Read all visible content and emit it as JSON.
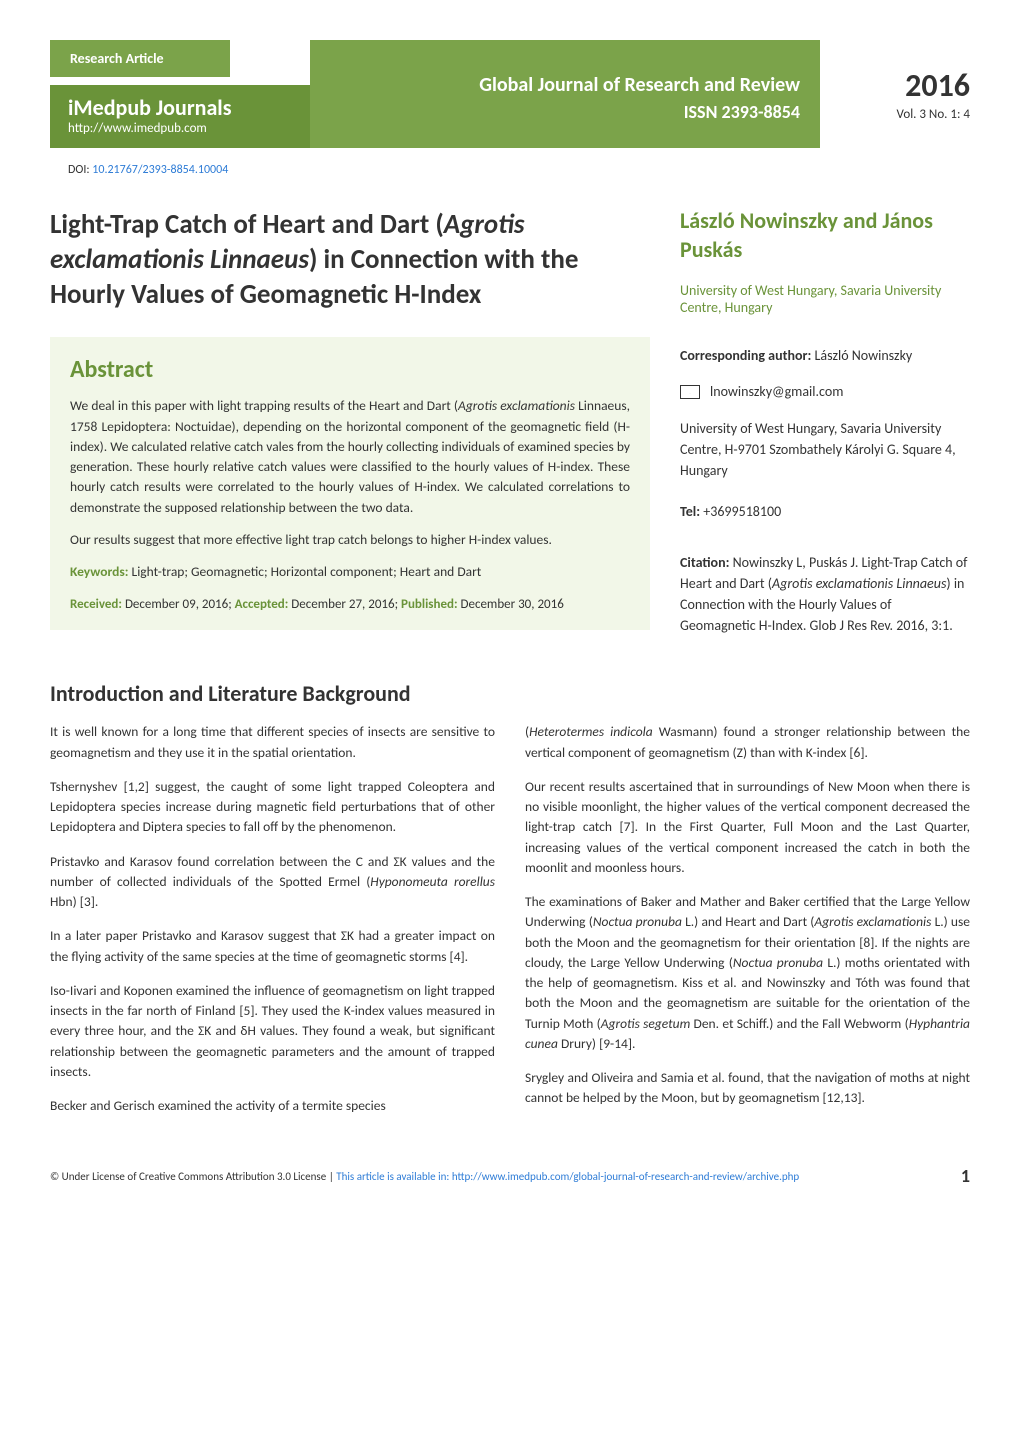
{
  "header": {
    "research_tag": "Research Article",
    "imedpub_title": "iMedpub Journals",
    "imedpub_url": "http://www.imedpub.com",
    "journal_name": "Global Journal of Research and Review",
    "issn": "ISSN 2393-8854",
    "year": "2016",
    "vol_issue": "Vol. 3 No. 1: 4",
    "doi": "DOI: 10.21767/2393-8854.10004"
  },
  "article": {
    "title_prefix": "Light-Trap Catch of Heart and Dart (",
    "title_italic1": "Agrotis exclamationis Linnaeus",
    "title_suffix": ") in Connection with the Hourly Values of Geomagnetic H-Index"
  },
  "authors": {
    "names": "László Nowinszky and János Puskás",
    "affiliation": "University of West Hungary, Savaria University Centre, Hungary"
  },
  "abstract": {
    "heading": "Abstract",
    "para1": "We deal in this paper with light trapping results of the Heart and Dart (Agrotis exclamationis Linnaeus, 1758 Lepidoptera: Noctuidae), depending on the horizontal component of the geomagnetic field (H-index). We calculated relative catch vales from the hourly collecting individuals of examined species by generation. These hourly relative catch values were classified to the hourly values of H-index. These hourly catch results were correlated to the hourly values of H-index. We calculated correlations to demonstrate the supposed relationship between the two data.",
    "para2": "Our results suggest that more effective light trap catch belongs to higher H-index values.",
    "keywords_label": "Keywords: ",
    "keywords": "Light-trap; Geomagnetic; Horizontal component; Heart and Dart",
    "received_label": "Received: ",
    "received": "December 09, 2016; ",
    "accepted_label": "Accepted: ",
    "accepted": "December 27, 2016; ",
    "published_label": "Published: ",
    "published": "December 30, 2016"
  },
  "corresponding": {
    "label": "Corresponding author:",
    "name": "  László Nowinszky",
    "email": "lnowinszky@gmail.com",
    "address": "University of West Hungary, Savaria University Centre, H-9701 Szombathely Károlyi G. Square 4, Hungary",
    "tel_label": "Tel:  ",
    "tel": "+3699518100"
  },
  "citation": {
    "label": "Citation: ",
    "text_pre": "Nowinszky L, Puskás J. Light-Trap Catch of Heart and Dart (",
    "text_italic": "Agrotis exclamationis Linnaeus",
    "text_post": ") in Connection with the Hourly Values of Geomagnetic H-Index. Glob J Res Rev. 2016, 3:1."
  },
  "intro": {
    "heading": "Introduction and Literature Background",
    "left": {
      "p1": "It is well known for a long time that different species of insects are sensitive to geomagnetism and they use it in the spatial orientation.",
      "p2": "Tshernyshev [1,2] suggest, the caught of some light trapped Coleoptera and Lepidoptera species increase during magnetic field perturbations that of other Lepidoptera and Diptera species to fall off by the phenomenon.",
      "p3": "Pristavko and Karasov found correlation between the C and ΣK values and the number of collected individuals of the Spotted Ermel (Hyponomeuta rorellus Hbn) [3].",
      "p4": "In a later paper Pristavko and Karasov suggest that ΣK had a greater impact on the flying activity of the same species at the time of geomagnetic storms [4].",
      "p5": "Iso-Iivari and Koponen examined the influence of geomagnetism on light trapped insects in the far north of Finland [5]. They used the K-index values measured in every three hour, and the ΣK and δH values. They found a weak, but significant relationship between the geomagnetic parameters and the amount of trapped insects.",
      "p6": "Becker and Gerisch examined the activity of a termite species"
    },
    "right": {
      "p1": "(Heterotermes indicola Wasmann) found a stronger relationship between the vertical component of geomagnetism (Z) than with K-index [6].",
      "p2": "Our recent results ascertained that in surroundings of New Moon when there is no visible moonlight, the higher values of the vertical component decreased the light-trap catch [7]. In the First Quarter, Full Moon and the Last Quarter, increasing values of the vertical component increased the catch in both the moonlit and moonless hours.",
      "p3": "The examinations of Baker and Mather and Baker certified that the Large Yellow Underwing (Noctua pronuba L.) and Heart and Dart (Agrotis exclamationis L.) use both the Moon and the geomagnetism for their orientation [8]. If the nights are cloudy, the Large Yellow Underwing (Noctua pronuba L.) moths orientated with the help of geomagnetism. Kiss et al. and Nowinszky and Tóth was found that both the Moon and the geomagnetism are suitable for the orientation of the Turnip Moth (Agrotis segetum Den. et Schiff.) and the Fall Webworm (Hyphantria cunea Drury) [9-14].",
      "p4": "Srygley and Oliveira and Samia et al. found, that the navigation of moths at night cannot be helped by the Moon, but by geomagnetism [12,13]."
    }
  },
  "footer": {
    "license_text": "© Under License of Creative Commons Attribution 3.0 License | ",
    "link_text": "This article is available in: http://www.imedpub.com/global-journal-of-research-and-review/archive.php",
    "page": "1"
  },
  "colors": {
    "accent_green": "#6a9339",
    "light_green": "#7ba34a",
    "bg_abstract": "#f2f7e8",
    "link_blue": "#2e7cd6",
    "text": "#333333"
  }
}
